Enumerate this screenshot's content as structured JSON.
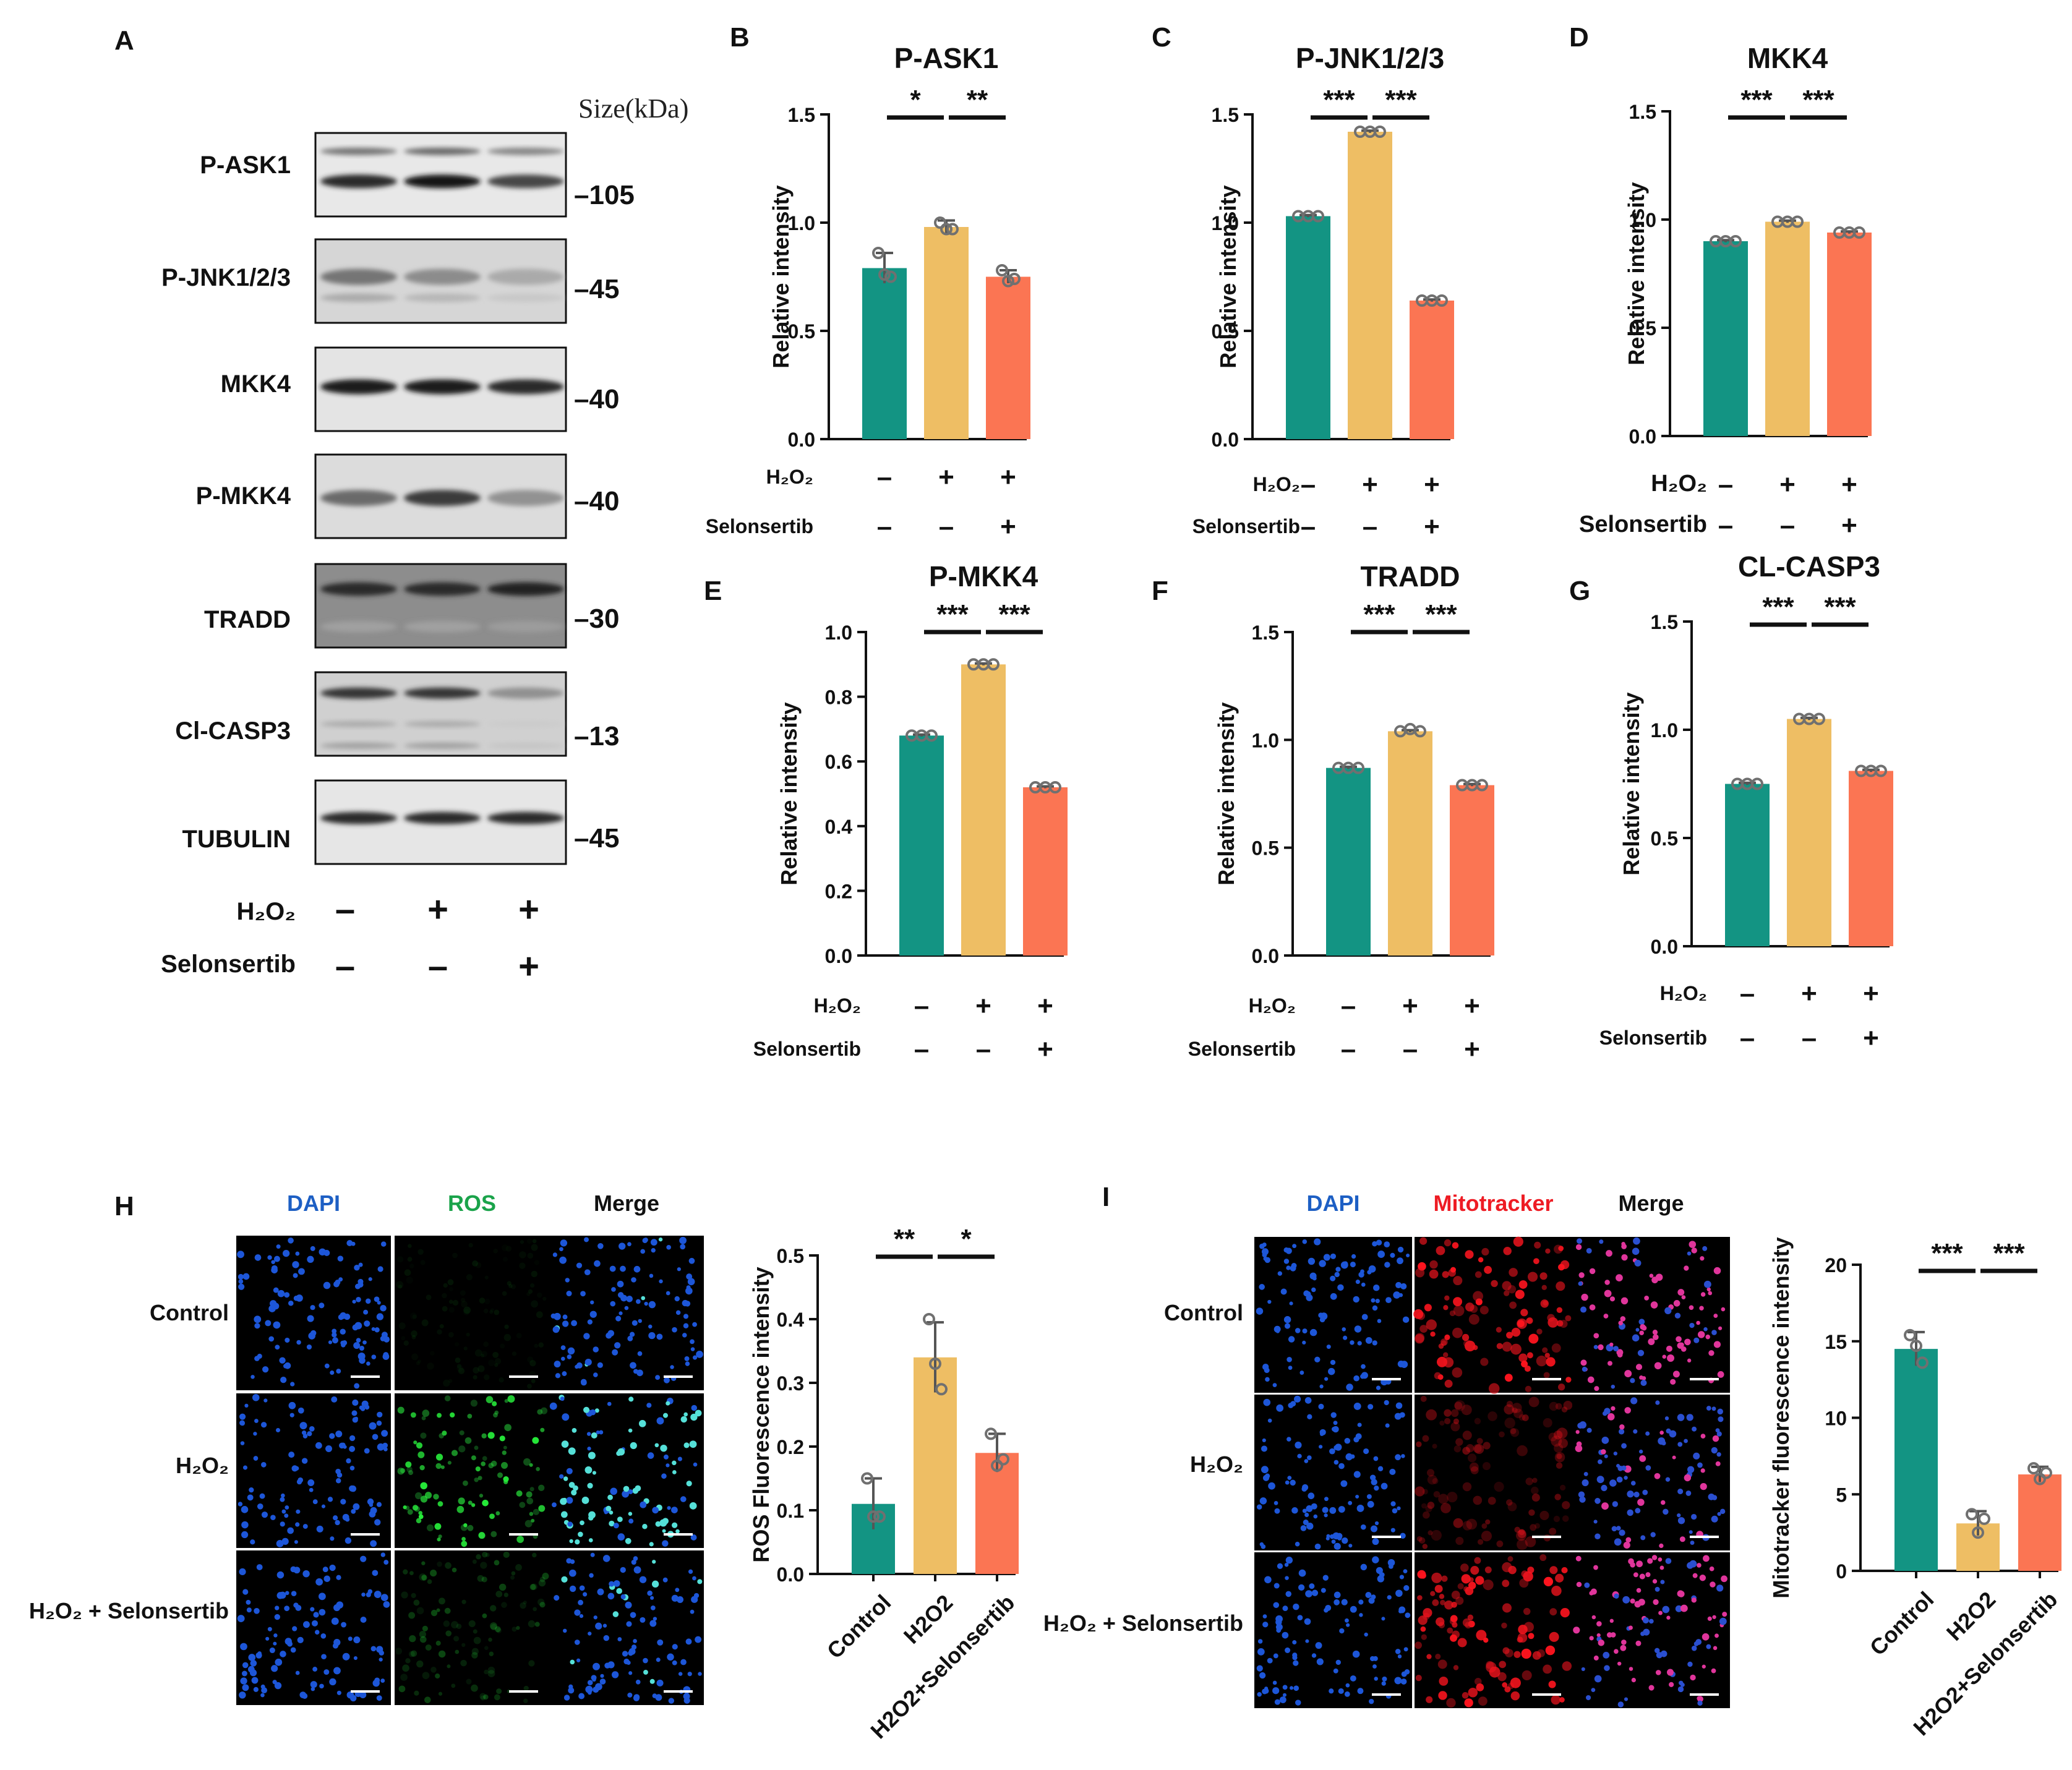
{
  "colors": {
    "control": "#139483",
    "h2o2": "#EEBE64",
    "selon": "#FB7553",
    "dot": "#707070",
    "dapi": "#1D5FC4",
    "ros": "#1AA34A",
    "mito": "#EE1C24"
  },
  "panel_letters": [
    "A",
    "B",
    "C",
    "D",
    "E",
    "F",
    "G",
    "H",
    "I"
  ],
  "blot": {
    "size_header": "Size(kDa)",
    "rows": [
      {
        "protein": "P-ASK1",
        "size": "–105"
      },
      {
        "protein": "P-JNK1/2/3",
        "size": "–45"
      },
      {
        "protein": "MKK4",
        "size": "–40"
      },
      {
        "protein": "P-MKK4",
        "size": "–40"
      },
      {
        "protein": "TRADD",
        "size": "–30"
      },
      {
        "protein": "Cl-CASP3",
        "size": "–13"
      },
      {
        "protein": "TUBULIN",
        "size": "–45"
      }
    ],
    "treatment_labels": [
      "H₂O₂",
      "Selonsertib"
    ],
    "h2o2_signs": [
      "–",
      "+",
      "+"
    ],
    "selon_signs": [
      "–",
      "–",
      "+"
    ]
  },
  "treatment_table": {
    "labels": [
      "H₂O₂",
      "Selonsertib"
    ],
    "h2o2": [
      "–",
      "+",
      "+"
    ],
    "selon": [
      "–",
      "–",
      "+"
    ]
  },
  "chart_data": [
    {
      "id": "B",
      "type": "bar",
      "title": "P-ASK1",
      "ylabel": "Relative intensity",
      "ylim": [
        0,
        1.5
      ],
      "ticks": [
        "0.0",
        "0.5",
        "1.0",
        "1.5"
      ],
      "tick_values": [
        0,
        0.5,
        1.0,
        1.5
      ],
      "categories": [
        "Control",
        "H₂O₂",
        "H₂O₂+Selonsertib"
      ],
      "values": [
        0.79,
        0.98,
        0.75
      ],
      "errors": [
        0.07,
        0.03,
        0.03
      ],
      "points": [
        [
          0.86,
          0.76,
          0.75
        ],
        [
          1.0,
          0.97,
          0.97
        ],
        [
          0.78,
          0.73,
          0.74
        ]
      ],
      "significance": [
        "*",
        "**"
      ]
    },
    {
      "id": "C",
      "type": "bar",
      "title": "P-JNK1/2/3",
      "ylabel": "Relative intensity",
      "ylim": [
        0,
        1.5
      ],
      "ticks": [
        "0.0",
        "0.5",
        "1.0",
        "1.5"
      ],
      "tick_values": [
        0,
        0.5,
        1.0,
        1.5
      ],
      "categories": [
        "Control",
        "H₂O₂",
        "H₂O₂+Selonsertib"
      ],
      "values": [
        1.03,
        1.42,
        0.64
      ],
      "errors": [
        0.005,
        0.005,
        0.005
      ],
      "points": [
        [
          1.03,
          1.03,
          1.03
        ],
        [
          1.42,
          1.42,
          1.42
        ],
        [
          0.64,
          0.64,
          0.64
        ]
      ],
      "significance": [
        "***",
        "***"
      ]
    },
    {
      "id": "D",
      "type": "bar",
      "title": "MKK4",
      "ylabel": "Relative intensity",
      "ylim": [
        0,
        1.5
      ],
      "ticks": [
        "0.0",
        "0.5",
        "1.0",
        "1.5"
      ],
      "tick_values": [
        0,
        0.5,
        1.0,
        1.5
      ],
      "categories": [
        "Control",
        "H₂O₂",
        "H₂O₂+Selonsertib"
      ],
      "values": [
        0.9,
        0.99,
        0.94
      ],
      "errors": [
        0.005,
        0.005,
        0.005
      ],
      "points": [
        [
          0.9,
          0.9,
          0.9
        ],
        [
          0.99,
          0.99,
          0.99
        ],
        [
          0.94,
          0.94,
          0.94
        ]
      ],
      "significance": [
        "***",
        "***"
      ]
    },
    {
      "id": "E",
      "type": "bar",
      "title": "P-MKK4",
      "ylabel": "Relative intensity",
      "ylim": [
        0,
        1.0
      ],
      "ticks": [
        "0.0",
        "0.2",
        "0.4",
        "0.6",
        "0.8",
        "1.0"
      ],
      "tick_values": [
        0,
        0.2,
        0.4,
        0.6,
        0.8,
        1.0
      ],
      "categories": [
        "Control",
        "H₂O₂",
        "H₂O₂+Selonsertib"
      ],
      "values": [
        0.68,
        0.9,
        0.52
      ],
      "errors": [
        0.003,
        0.003,
        0.003
      ],
      "points": [
        [
          0.68,
          0.68,
          0.68
        ],
        [
          0.9,
          0.9,
          0.9
        ],
        [
          0.52,
          0.52,
          0.52
        ]
      ],
      "significance": [
        "***",
        "***"
      ]
    },
    {
      "id": "F",
      "type": "bar",
      "title": "TRADD",
      "ylabel": "Relative intensity",
      "ylim": [
        0,
        1.5
      ],
      "ticks": [
        "0.0",
        "0.5",
        "1.0",
        "1.5"
      ],
      "tick_values": [
        0,
        0.5,
        1.0,
        1.5
      ],
      "categories": [
        "Control",
        "H₂O₂",
        "H₂O₂+Selonsertib"
      ],
      "values": [
        0.87,
        1.04,
        0.79
      ],
      "errors": [
        0.005,
        0.005,
        0.005
      ],
      "points": [
        [
          0.87,
          0.87,
          0.87
        ],
        [
          1.04,
          1.05,
          1.04
        ],
        [
          0.79,
          0.79,
          0.79
        ]
      ],
      "significance": [
        "***",
        "***"
      ]
    },
    {
      "id": "G",
      "type": "bar",
      "title": "CL-CASP3",
      "ylabel": "Relative intensity",
      "ylim": [
        0,
        1.5
      ],
      "ticks": [
        "0.0",
        "0.5",
        "1.0",
        "1.5"
      ],
      "tick_values": [
        0,
        0.5,
        1.0,
        1.5
      ],
      "categories": [
        "Control",
        "H₂O₂",
        "H₂O₂+Selonsertib"
      ],
      "values": [
        0.75,
        1.05,
        0.81
      ],
      "errors": [
        0.005,
        0.005,
        0.005
      ],
      "points": [
        [
          0.75,
          0.75,
          0.75
        ],
        [
          1.05,
          1.05,
          1.05
        ],
        [
          0.81,
          0.81,
          0.81
        ]
      ],
      "significance": [
        "***",
        "***"
      ]
    },
    {
      "id": "H",
      "type": "bar",
      "title": "",
      "ylabel": "ROS Fluorescence intensity",
      "ylim": [
        0,
        0.5
      ],
      "ticks": [
        "0.0",
        "0.1",
        "0.2",
        "0.3",
        "0.4",
        "0.5"
      ],
      "tick_values": [
        0,
        0.1,
        0.2,
        0.3,
        0.4,
        0.5
      ],
      "categories": [
        "Control",
        "H2O2",
        "H2O2+Selonsertib"
      ],
      "values": [
        0.11,
        0.34,
        0.19
      ],
      "errors": [
        0.04,
        0.055,
        0.03
      ],
      "points": [
        [
          0.15,
          0.09,
          0.09
        ],
        [
          0.4,
          0.33,
          0.29
        ],
        [
          0.22,
          0.17,
          0.18
        ]
      ],
      "significance": [
        "**",
        "*"
      ]
    },
    {
      "id": "I",
      "type": "bar",
      "title": "",
      "ylabel": "Mitotracker fluorescence intensity",
      "ylim": [
        0,
        20
      ],
      "ticks": [
        "0",
        "5",
        "10",
        "15",
        "20"
      ],
      "tick_values": [
        0,
        5,
        10,
        15,
        20
      ],
      "categories": [
        "Control",
        "H2O2",
        "H2O2+Selonsertib"
      ],
      "values": [
        14.5,
        3.1,
        6.3
      ],
      "errors": [
        1.1,
        0.8,
        0.5
      ],
      "points": [
        [
          15.4,
          14.7,
          13.6
        ],
        [
          3.7,
          2.5,
          3.4
        ],
        [
          6.7,
          6.0,
          6.4
        ]
      ],
      "significance": [
        "***",
        "***"
      ]
    }
  ],
  "microscopy": {
    "H": {
      "columns": [
        "DAPI",
        "ROS",
        "Merge"
      ],
      "rows": [
        "Control",
        "H₂O₂",
        "H₂O₂ + Selonsertib"
      ]
    },
    "I": {
      "columns": [
        "DAPI",
        "Mitotracker",
        "Merge"
      ],
      "rows": [
        "Control",
        "H₂O₂",
        "H₂O₂ + Selonsertib"
      ]
    }
  }
}
